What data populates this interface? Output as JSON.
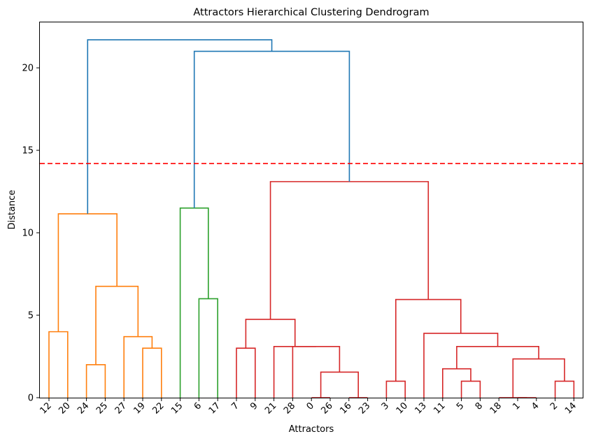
{
  "chart_data": {
    "type": "dendrogram",
    "title": "Attractors Hierarchical Clustering Dendrogram",
    "xlabel": "Attractors",
    "ylabel": "Distance",
    "ylim": [
      0,
      22.8
    ],
    "yticks": [
      0,
      5,
      10,
      15,
      20
    ],
    "leaf_order": [
      "12",
      "20",
      "24",
      "25",
      "27",
      "19",
      "22",
      "15",
      "6",
      "17",
      "7",
      "9",
      "21",
      "28",
      "0",
      "26",
      "16",
      "23",
      "3",
      "10",
      "13",
      "11",
      "5",
      "8",
      "18",
      "1",
      "4",
      "2",
      "14"
    ],
    "cut_threshold": 14.2,
    "cut_line_color": "#ff0000",
    "cluster_colors": {
      "above_cut": "#1f77b4",
      "cluster_1": "#ff7f0e",
      "cluster_2": "#2ca02c",
      "cluster_3": "#d62728"
    },
    "merges": [
      {
        "left": "12",
        "right": "20",
        "height": 4.0,
        "color": "cluster_1"
      },
      {
        "left": "24",
        "right": "25",
        "height": 2.0,
        "color": "cluster_1"
      },
      {
        "left": "19",
        "right": "22",
        "height": 3.0,
        "color": "cluster_1"
      },
      {
        "left": "27",
        "right": "m3",
        "height": 3.7,
        "color": "cluster_1"
      },
      {
        "left": "m2",
        "right": "m4",
        "height": 6.75,
        "color": "cluster_1"
      },
      {
        "left": "m1",
        "right": "m5",
        "height": 11.15,
        "color": "cluster_1"
      },
      {
        "left": "6",
        "right": "17",
        "height": 6.0,
        "color": "cluster_2"
      },
      {
        "left": "15",
        "right": "m7",
        "height": 11.5,
        "color": "cluster_2"
      },
      {
        "left": "7",
        "right": "9",
        "height": 3.0,
        "color": "cluster_3"
      },
      {
        "left": "0",
        "right": "26",
        "height": 0.0,
        "color": "cluster_3"
      },
      {
        "left": "16",
        "right": "23",
        "height": 0.0,
        "color": "cluster_3"
      },
      {
        "left": "m10",
        "right": "m11",
        "height": 1.55,
        "color": "cluster_3"
      },
      {
        "left": "28",
        "right": "m12",
        "height": 3.1,
        "color": "cluster_3"
      },
      {
        "left": "21",
        "right": "m13",
        "height": 3.1,
        "color": "cluster_3"
      },
      {
        "left": "m9",
        "right": "m14",
        "height": 4.75,
        "color": "cluster_3"
      },
      {
        "left": "3",
        "right": "10",
        "height": 1.0,
        "color": "cluster_3"
      },
      {
        "left": "5",
        "right": "8",
        "height": 1.0,
        "color": "cluster_3"
      },
      {
        "left": "11",
        "right": "m17",
        "height": 1.75,
        "color": "cluster_3"
      },
      {
        "left": "1",
        "right": "4",
        "height": 0.0,
        "color": "cluster_3"
      },
      {
        "left": "18",
        "right": "m19",
        "height": 0.0,
        "color": "cluster_3"
      },
      {
        "left": "2",
        "right": "14",
        "height": 1.0,
        "color": "cluster_3"
      },
      {
        "left": "m20",
        "right": "m21",
        "height": 2.35,
        "color": "cluster_3"
      },
      {
        "left": "m18",
        "right": "m22",
        "height": 3.1,
        "color": "cluster_3"
      },
      {
        "left": "13",
        "right": "m23",
        "height": 3.9,
        "color": "cluster_3"
      },
      {
        "left": "m16",
        "right": "m24",
        "height": 5.95,
        "color": "cluster_3"
      },
      {
        "left": "m15",
        "right": "m25",
        "height": 13.1,
        "color": "cluster_3"
      },
      {
        "left": "m8",
        "right": "m26",
        "height": 21.0,
        "color": "above_cut"
      },
      {
        "left": "m6",
        "right": "m27",
        "height": 21.7,
        "color": "above_cut"
      }
    ]
  }
}
